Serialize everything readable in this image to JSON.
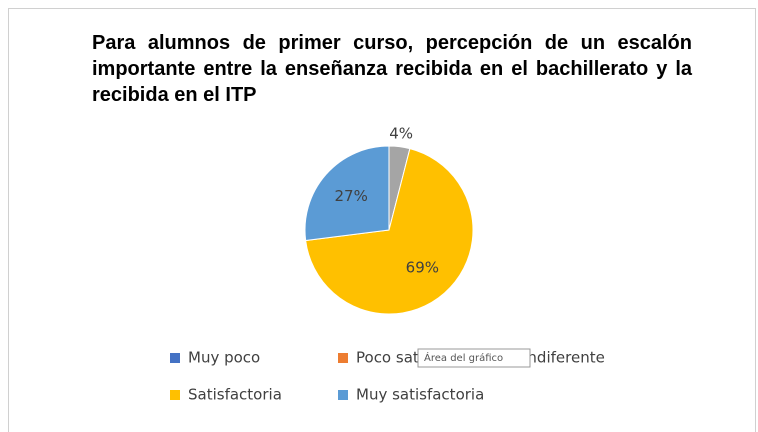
{
  "chart_data": {
    "type": "pie",
    "title": "Para alumnos de primer curso, percepción de un escalón importante entre la enseñanza recibida en el bachillerato y la recibida en el ITP",
    "categories": [
      "Muy poco",
      "Poco satisfactoria",
      "Indiferente",
      "Satisfactoria",
      "Muy satisfactoria"
    ],
    "values": [
      0,
      0,
      4,
      69,
      27
    ],
    "value_labels": [
      null,
      null,
      "4%",
      "69%",
      "27%"
    ],
    "colors": [
      "#4472c4",
      "#ed7d31",
      "#a5a5a5",
      "#ffc000",
      "#5b9bd5"
    ],
    "legend": "bottom"
  },
  "tooltip": "Área del gráfico"
}
